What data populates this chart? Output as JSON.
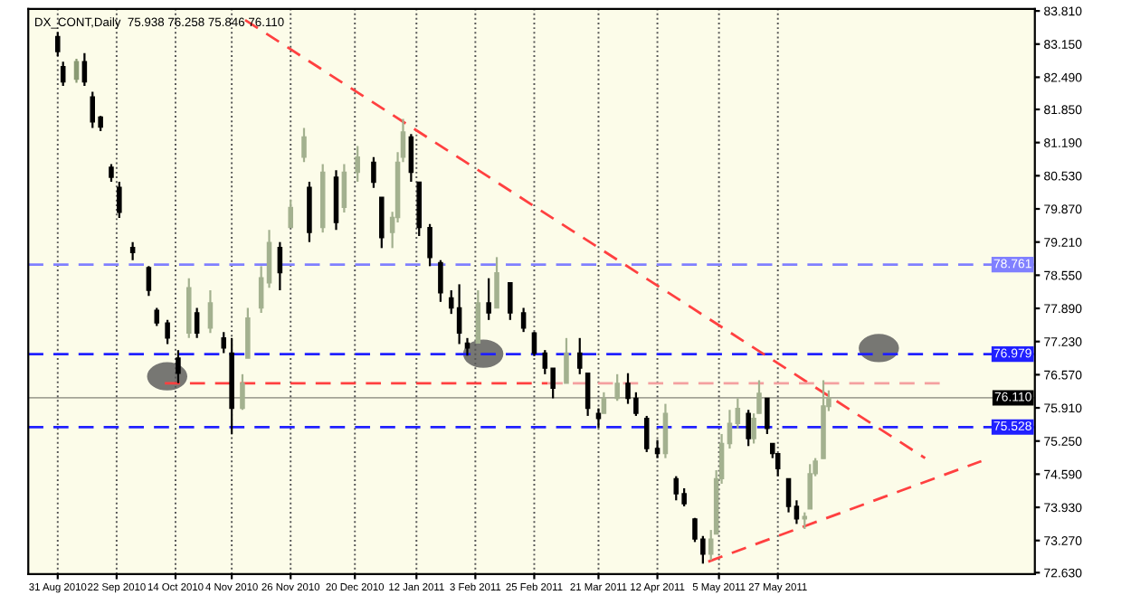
{
  "chart_data": {
    "type": "candlestick",
    "title": "DX_CONT,Daily  75.938 76.258 75.846 76.110",
    "colors": [
      "#000000",
      "#000000",
      "#8a9a74",
      "#000000",
      "#000000",
      "#000000",
      "#000000",
      "#000000",
      "#000000",
      "#000000",
      "#000000",
      "#000000",
      "#000000",
      "#a3b18f",
      "#000000",
      "#a3b18f",
      "#000000",
      "#000000",
      "#a3b18f",
      "#a3b18f",
      "#a3b18f",
      "#a3b18f",
      "#000000",
      "#a3b18f",
      "#a3b18f",
      "#000000",
      "#a3b18f",
      "#000000",
      "#a3b18f",
      "#a3b18f",
      "#000000",
      "#000000",
      "#a3b18f",
      "#a3b18f",
      "#a3b18f",
      "#000000",
      "#000000",
      "#000000",
      "#000000",
      "#000000",
      "#000000",
      "#000000",
      "#a3b18f",
      "#000000",
      "#a3b18f",
      "#000000",
      "#000000",
      "#000000",
      "#000000",
      "#000000",
      "#a3b18f",
      "#000000",
      "#000000",
      "#000000",
      "#a3b18f",
      "#a3b18f",
      "#000000",
      "#000000",
      "#000000",
      "#000000",
      "#a3b18f",
      "#000000",
      "#000000",
      "#000000",
      "#000000",
      "#a3b18f",
      "#a3b18f",
      "#a3b18f",
      "#a3b18f",
      "#a3b18f",
      "#000000",
      "#a3b18f",
      "#a3b18f",
      "#000000",
      "#000000",
      "#000000",
      "#000000",
      "#000000",
      "#a3b18f",
      "#a3b18f",
      "#a3b18f",
      "#a3b18f",
      "#a3b18f"
    ],
    "x": [
      "2010-08-31",
      "2010-09-02",
      "2010-09-07",
      "2010-09-10",
      "2010-09-13",
      "2010-09-16",
      "2010-09-20",
      "2010-09-23",
      "2010-09-28",
      "2010-10-04",
      "2010-10-07",
      "2010-10-11",
      "2010-10-15",
      "2010-10-19",
      "2010-10-22",
      "2010-10-27",
      "2010-11-01",
      "2010-11-04",
      "2010-11-08",
      "2010-11-10",
      "2010-11-15",
      "2010-11-18",
      "2010-11-22",
      "2010-11-26",
      "2010-12-01",
      "2010-12-03",
      "2010-12-08",
      "2010-12-13",
      "2010-12-16",
      "2010-12-21",
      "2010-12-27",
      "2010-12-30",
      "2011-01-03",
      "2011-01-05",
      "2011-01-07",
      "2011-01-10",
      "2011-01-13",
      "2011-01-17",
      "2011-01-21",
      "2011-01-25",
      "2011-01-28",
      "2011-01-31",
      "2011-02-04",
      "2011-02-08",
      "2011-02-11",
      "2011-02-16",
      "2011-02-21",
      "2011-02-25",
      "2011-03-01",
      "2011-03-04",
      "2011-03-09",
      "2011-03-14",
      "2011-03-17",
      "2011-03-21",
      "2011-03-23",
      "2011-03-28",
      "2011-04-01",
      "2011-04-04",
      "2011-04-08",
      "2011-04-12",
      "2011-04-15",
      "2011-04-19",
      "2011-04-22",
      "2011-04-26",
      "2011-04-29",
      "2011-05-02",
      "2011-05-04",
      "2011-05-06",
      "2011-05-09",
      "2011-05-12",
      "2011-05-16",
      "2011-05-18",
      "2011-05-20",
      "2011-05-23",
      "2011-05-25",
      "2011-05-27",
      "2011-05-31",
      "2011-06-03",
      "2011-06-06",
      "2011-06-08",
      "2011-06-10",
      "2011-06-13",
      "2011-06-15"
    ],
    "ohlc": [
      [
        83.3,
        83.39,
        82.91,
        83.0
      ],
      [
        82.7,
        82.8,
        82.32,
        82.4
      ],
      [
        82.45,
        82.86,
        82.38,
        82.8
      ],
      [
        82.8,
        82.97,
        82.32,
        82.4
      ],
      [
        82.1,
        82.2,
        81.48,
        81.6
      ],
      [
        81.7,
        81.72,
        81.42,
        81.5
      ],
      [
        80.7,
        80.76,
        80.41,
        80.5
      ],
      [
        80.3,
        80.41,
        79.69,
        79.8
      ],
      [
        79.1,
        79.21,
        78.85,
        79.0
      ],
      [
        78.7,
        78.73,
        78.14,
        78.25
      ],
      [
        77.85,
        77.9,
        77.54,
        77.6
      ],
      [
        77.6,
        77.66,
        77.18,
        77.3
      ],
      [
        76.9,
        77.06,
        76.4,
        76.6
      ],
      [
        77.4,
        78.49,
        77.3,
        78.3
      ],
      [
        77.8,
        77.9,
        77.3,
        77.4
      ],
      [
        77.5,
        78.25,
        77.4,
        78.0
      ],
      [
        77.3,
        77.42,
        77.0,
        77.1
      ],
      [
        77.0,
        77.3,
        75.39,
        75.9
      ],
      [
        75.9,
        76.58,
        75.87,
        76.4
      ],
      [
        76.9,
        77.9,
        76.9,
        77.7
      ],
      [
        77.9,
        78.73,
        77.8,
        78.5
      ],
      [
        78.4,
        79.45,
        78.3,
        79.2
      ],
      [
        79.1,
        79.21,
        78.25,
        78.6
      ],
      [
        79.5,
        80.05,
        79.5,
        79.9
      ],
      [
        80.9,
        81.48,
        80.8,
        81.3
      ],
      [
        80.3,
        80.41,
        79.21,
        79.4
      ],
      [
        79.5,
        80.76,
        79.4,
        80.6
      ],
      [
        80.5,
        80.64,
        79.45,
        79.6
      ],
      [
        79.9,
        80.76,
        79.8,
        80.6
      ],
      [
        80.6,
        81.12,
        80.41,
        80.9
      ],
      [
        80.8,
        80.9,
        80.29,
        80.4
      ],
      [
        80.1,
        80.1,
        79.09,
        79.3
      ],
      [
        79.4,
        79.81,
        79.09,
        79.7
      ],
      [
        79.7,
        81.0,
        79.6,
        80.8
      ],
      [
        80.9,
        81.66,
        80.8,
        81.4
      ],
      [
        81.3,
        81.36,
        80.41,
        80.6
      ],
      [
        80.4,
        80.41,
        79.33,
        79.5
      ],
      [
        79.5,
        79.57,
        78.73,
        78.9
      ],
      [
        78.8,
        78.85,
        78.02,
        78.2
      ],
      [
        78.1,
        78.25,
        77.78,
        77.9
      ],
      [
        77.9,
        78.37,
        77.18,
        77.4
      ],
      [
        77.2,
        77.3,
        76.95,
        77.1
      ],
      [
        77.2,
        78.25,
        77.2,
        78.0
      ],
      [
        78.0,
        78.49,
        77.66,
        77.8
      ],
      [
        77.9,
        78.91,
        77.9,
        78.6
      ],
      [
        78.4,
        78.4,
        77.66,
        77.8
      ],
      [
        77.8,
        77.9,
        77.42,
        77.5
      ],
      [
        77.4,
        77.42,
        76.94,
        77.0
      ],
      [
        77.0,
        77.06,
        76.58,
        76.7
      ],
      [
        76.7,
        76.7,
        76.1,
        76.3
      ],
      [
        76.4,
        77.3,
        76.4,
        77.0
      ],
      [
        77.0,
        77.3,
        76.58,
        76.7
      ],
      [
        76.6,
        76.6,
        75.75,
        75.9
      ],
      [
        75.8,
        75.9,
        75.51,
        75.7
      ],
      [
        75.8,
        76.22,
        75.8,
        76.1
      ],
      [
        76.1,
        76.58,
        76.05,
        76.4
      ],
      [
        76.4,
        76.6,
        75.99,
        76.1
      ],
      [
        76.1,
        76.22,
        75.75,
        75.8
      ],
      [
        75.7,
        75.75,
        75.03,
        75.1
      ],
      [
        75.1,
        75.27,
        74.91,
        75.0
      ],
      [
        75.0,
        75.99,
        74.91,
        75.8
      ],
      [
        74.5,
        74.55,
        74.07,
        74.2
      ],
      [
        74.2,
        74.31,
        73.95,
        74.0
      ],
      [
        73.7,
        73.72,
        73.24,
        73.3
      ],
      [
        73.3,
        73.36,
        72.81,
        73.0
      ],
      [
        73.0,
        73.48,
        72.88,
        73.3
      ],
      [
        73.4,
        74.67,
        73.4,
        74.5
      ],
      [
        74.5,
        75.39,
        74.4,
        75.2
      ],
      [
        75.2,
        75.87,
        75.1,
        75.6
      ],
      [
        75.6,
        76.1,
        75.5,
        75.9
      ],
      [
        75.8,
        75.87,
        75.15,
        75.3
      ],
      [
        75.3,
        75.8,
        75.2,
        75.7
      ],
      [
        75.8,
        76.46,
        75.8,
        76.2
      ],
      [
        76.1,
        76.1,
        75.39,
        75.5
      ],
      [
        75.2,
        75.2,
        74.91,
        75.0
      ],
      [
        75.0,
        75.0,
        74.55,
        74.7
      ],
      [
        74.5,
        74.5,
        73.83,
        73.95
      ],
      [
        73.95,
        74.07,
        73.6,
        73.7
      ],
      [
        73.7,
        73.83,
        73.5,
        73.75
      ],
      [
        73.9,
        74.79,
        73.9,
        74.6
      ],
      [
        74.6,
        74.91,
        74.55,
        74.85
      ],
      [
        74.9,
        76.46,
        74.9,
        75.95
      ],
      [
        75.938,
        76.258,
        75.846,
        76.11
      ]
    ],
    "series": [
      {
        "type": "line",
        "color": "#ff4040",
        "line_style": "dashed",
        "x": [
          "2010-11-09",
          "2011-07-21"
        ],
        "values": [
          83.63,
          74.91
        ]
      },
      {
        "type": "line",
        "color": "#ff4040",
        "line_style": "dashed",
        "x": [
          "2011-05-01",
          "2011-08-11"
        ],
        "values": [
          72.85,
          74.85
        ]
      },
      {
        "type": "line",
        "color": "#ff4040",
        "line_style": "dashed",
        "x": [
          "2010-10-10",
          "2011-03-02"
        ],
        "values": [
          76.4,
          76.4
        ]
      },
      {
        "type": "line",
        "color": "#f4a0a0",
        "line_style": "dashed",
        "x": [
          "2011-03-02",
          "2011-07-27"
        ],
        "values": [
          76.4,
          76.4
        ]
      }
    ],
    "ref_lines": [
      {
        "axis": "y",
        "value": 78.761,
        "label": "78.761",
        "color": "#8080ff",
        "line_style": "dashed"
      },
      {
        "axis": "y",
        "value": 76.979,
        "label": "76.979",
        "color": "#2020ff",
        "line_style": "dashed"
      },
      {
        "axis": "y",
        "value": 76.11,
        "label": "76.110",
        "color": "#000000",
        "line_style": "solid"
      },
      {
        "axis": "y",
        "value": 75.528,
        "label": "75.528",
        "color": "#2020ff",
        "line_style": "dashed"
      }
    ],
    "xlim": [
      "2010-08-20",
      "2011-08-31"
    ],
    "xticks": [
      {
        "value": "2010-08-31",
        "label": "31 Aug 2010"
      },
      {
        "value": "2010-09-22",
        "label": "22 Sep 2010"
      },
      {
        "value": "2010-10-14",
        "label": "14 Oct 2010"
      },
      {
        "value": "2010-11-04",
        "label": "4 Nov 2010"
      },
      {
        "value": "2010-11-26",
        "label": "26 Nov 2010"
      },
      {
        "value": "2010-12-20",
        "label": "20 Dec 2010"
      },
      {
        "value": "2011-01-12",
        "label": "12 Jan 2011"
      },
      {
        "value": "2011-02-03",
        "label": "3 Feb 2011"
      },
      {
        "value": "2011-02-25",
        "label": "25 Feb 2011"
      },
      {
        "value": "2011-03-21",
        "label": "21 Mar 2011"
      },
      {
        "value": "2011-04-12",
        "label": "12 Apr 2011"
      },
      {
        "value": "2011-05-05",
        "label": "5 May 2011"
      },
      {
        "value": "2011-05-27",
        "label": "27 May 2011"
      }
    ],
    "ylim": [
      72.6,
      83.85
    ],
    "yticks": [
      {
        "value": 83.81,
        "label": "83.810"
      },
      {
        "value": 83.15,
        "label": "83.150"
      },
      {
        "value": 82.49,
        "label": "82.490"
      },
      {
        "value": 81.85,
        "label": "81.850"
      },
      {
        "value": 81.19,
        "label": "81.190"
      },
      {
        "value": 80.53,
        "label": "80.530"
      },
      {
        "value": 79.87,
        "label": "79.870"
      },
      {
        "value": 79.21,
        "label": "79.210"
      },
      {
        "value": 78.55,
        "label": "78.550"
      },
      {
        "value": 77.89,
        "label": "77.890"
      },
      {
        "value": 77.23,
        "label": "77.230"
      },
      {
        "value": 76.57,
        "label": "76.570"
      },
      {
        "value": 75.91,
        "label": "75.910"
      },
      {
        "value": 75.25,
        "label": "75.250"
      },
      {
        "value": 74.59,
        "label": "74.590"
      },
      {
        "value": 73.93,
        "label": "73.930"
      },
      {
        "value": 73.27,
        "label": "73.270"
      },
      {
        "value": 72.63,
        "label": "72.630"
      }
    ],
    "grid": "x"
  }
}
